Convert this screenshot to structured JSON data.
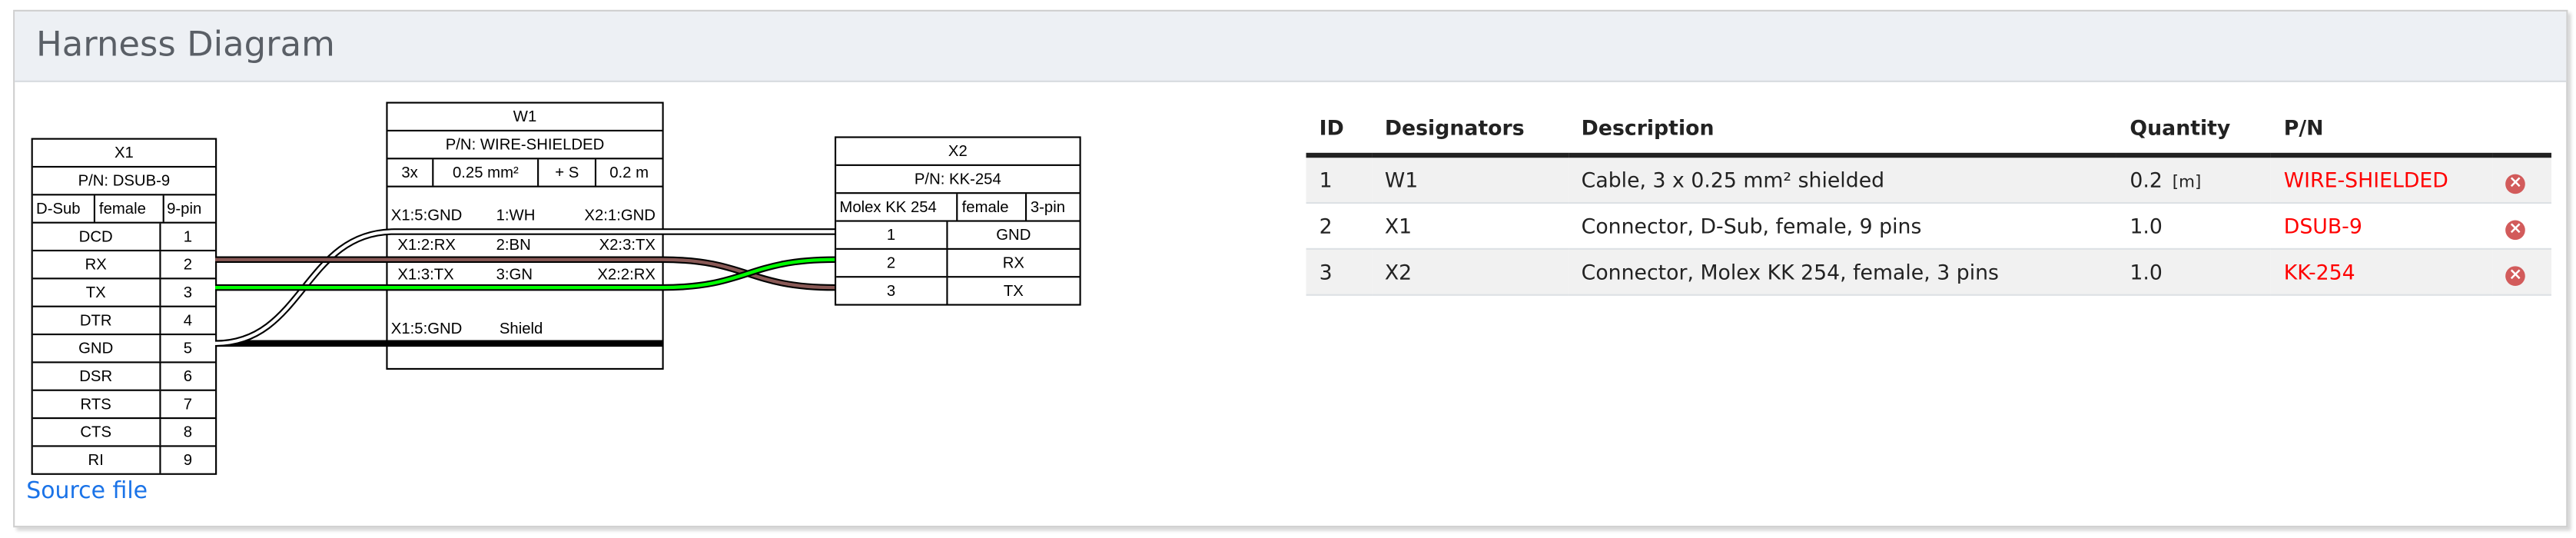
{
  "header": {
    "title": "Harness Diagram"
  },
  "diagram": {
    "x1": {
      "name": "X1",
      "pn": "P/N: DSUB-9",
      "attrs": [
        "D-Sub",
        "female",
        "9-pin"
      ],
      "pins": [
        [
          "DCD",
          "1"
        ],
        [
          "RX",
          "2"
        ],
        [
          "TX",
          "3"
        ],
        [
          "DTR",
          "4"
        ],
        [
          "GND",
          "5"
        ],
        [
          "DSR",
          "6"
        ],
        [
          "RTS",
          "7"
        ],
        [
          "CTS",
          "8"
        ],
        [
          "RI",
          "9"
        ]
      ]
    },
    "w1": {
      "name": "W1",
      "pn": "P/N: WIRE-SHIELDED",
      "attrs": [
        "3x",
        "0.25 mm²",
        "+ S",
        "0.2 m"
      ],
      "wires": [
        {
          "from": "X1:5:GND",
          "wire": "1:WH",
          "to": "X2:1:GND",
          "color": "#ffffff"
        },
        {
          "from": "X1:2:RX",
          "wire": "2:BN",
          "to": "X2:3:TX",
          "color": "#895956"
        },
        {
          "from": "X1:3:TX",
          "wire": "3:GN",
          "to": "X2:2:RX",
          "color": "#00ff00"
        }
      ],
      "shield": {
        "from": "X1:5:GND",
        "label": "Shield"
      }
    },
    "x2": {
      "name": "X2",
      "pn": "P/N: KK-254",
      "attrs": [
        "Molex KK 254",
        "female",
        "3-pin"
      ],
      "pins": [
        [
          "1",
          "GND"
        ],
        [
          "2",
          "RX"
        ],
        [
          "3",
          "TX"
        ]
      ]
    }
  },
  "source_link": "Source file",
  "bom": {
    "headers": [
      "ID",
      "Designators",
      "Description",
      "Quantity",
      "P/N"
    ],
    "rows": [
      {
        "id": "1",
        "designators": "W1",
        "description": "Cable, 3 x 0.25 mm² shielded",
        "quantity": "0.2",
        "unit": "[m]",
        "pn": "WIRE-SHIELDED"
      },
      {
        "id": "2",
        "designators": "X1",
        "description": "Connector, D-Sub, female, 9 pins",
        "quantity": "1.0",
        "unit": "",
        "pn": "DSUB-9"
      },
      {
        "id": "3",
        "designators": "X2",
        "description": "Connector, Molex KK 254, female, 3 pins",
        "quantity": "1.0",
        "unit": "",
        "pn": "KK-254"
      }
    ],
    "delete_icon": "remove-circle-icon"
  },
  "colors": {
    "pn_link": "#ff0000",
    "source_link": "#1a73e8",
    "delete_icon": "#d25b5b"
  }
}
